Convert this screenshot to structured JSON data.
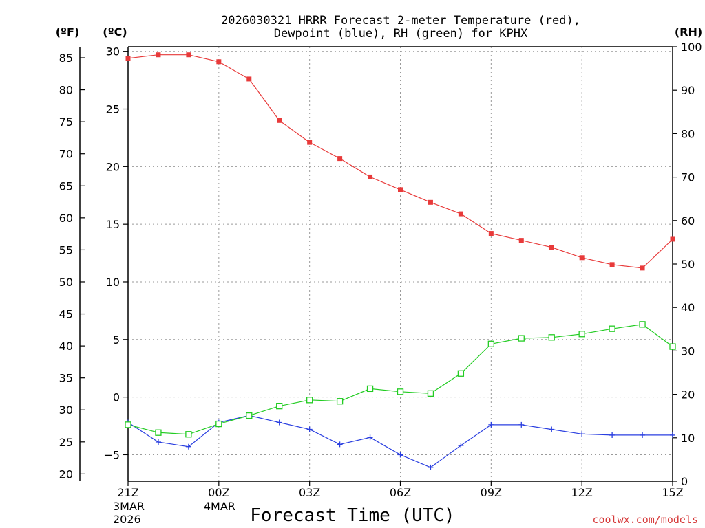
{
  "chart_data": {
    "type": "line",
    "title_line1": "2026030321 HRRR Forecast 2-meter Temperature (red),",
    "title_line2": "Dewpoint (blue), RH (green) for KPHX",
    "xlabel": "Forecast Time (UTC)",
    "credit": "coolwx.com/models",
    "units": {
      "fahrenheit": "(ºF)",
      "celsius": "(ºC)",
      "rh": "(RH)"
    },
    "x_hours": [
      0,
      1,
      2,
      3,
      4,
      5,
      6,
      7,
      8,
      9,
      10,
      11,
      12,
      13,
      14,
      15,
      16,
      17,
      18
    ],
    "x_ticks": [
      {
        "hour": 0,
        "label": "21Z",
        "sub1": "3MAR",
        "sub2": "2026"
      },
      {
        "hour": 3,
        "label": "00Z",
        "sub1": "4MAR",
        "sub2": ""
      },
      {
        "hour": 6,
        "label": "03Z",
        "sub1": "",
        "sub2": ""
      },
      {
        "hour": 9,
        "label": "06Z",
        "sub1": "",
        "sub2": ""
      },
      {
        "hour": 12,
        "label": "09Z",
        "sub1": "",
        "sub2": ""
      },
      {
        "hour": 15,
        "label": "12Z",
        "sub1": "",
        "sub2": ""
      },
      {
        "hour": 18,
        "label": "15Z",
        "sub1": "",
        "sub2": ""
      }
    ],
    "celsius_ticks": [
      "30",
      "25",
      "20",
      "15",
      "10",
      "5",
      "0",
      "−5"
    ],
    "celsius_tick_values": [
      30,
      25,
      20,
      15,
      10,
      5,
      0,
      -5
    ],
    "fahrenheit_ticks": [
      "85",
      "80",
      "75",
      "70",
      "65",
      "60",
      "55",
      "50",
      "45",
      "40",
      "35",
      "30",
      "25",
      "20"
    ],
    "fahrenheit_tick_values": [
      85,
      80,
      75,
      70,
      65,
      60,
      55,
      50,
      45,
      40,
      35,
      30,
      25,
      20
    ],
    "rh_ticks": [
      "100",
      "90",
      "80",
      "70",
      "60",
      "50",
      "40",
      "30",
      "20",
      "10",
      "0"
    ],
    "rh_tick_values": [
      100,
      90,
      80,
      70,
      60,
      50,
      40,
      30,
      20,
      10,
      0
    ],
    "ylim_celsius": [
      -7.3,
      30.4
    ],
    "ylim_rh": [
      0,
      100
    ],
    "series": [
      {
        "name": "Temperature",
        "color": "#e83a3a",
        "marker": "filled-square",
        "axis": "celsius",
        "values": [
          29.4,
          29.7,
          29.7,
          29.1,
          27.6,
          24.0,
          22.1,
          20.7,
          19.1,
          18.0,
          16.9,
          15.9,
          14.2,
          13.6,
          13.0,
          12.1,
          11.5,
          11.2,
          13.7
        ]
      },
      {
        "name": "Dewpoint",
        "color": "#2a3fe0",
        "marker": "plus",
        "axis": "celsius",
        "values": [
          -2.2,
          -3.9,
          -4.3,
          -2.2,
          -1.6,
          -2.2,
          -2.8,
          -4.1,
          -3.5,
          -5.0,
          -6.1,
          -4.2,
          -2.4,
          -2.4,
          -2.8,
          -3.2,
          -3.3,
          -3.3,
          -3.3
        ]
      },
      {
        "name": "RH",
        "color": "#22cc22",
        "marker": "open-square",
        "axis": "rh",
        "values": [
          13.0,
          11.2,
          10.8,
          13.2,
          15.1,
          17.3,
          18.7,
          18.4,
          21.3,
          20.6,
          20.2,
          24.8,
          31.6,
          32.9,
          33.1,
          33.9,
          35.1,
          36.1,
          31.0
        ]
      }
    ]
  }
}
